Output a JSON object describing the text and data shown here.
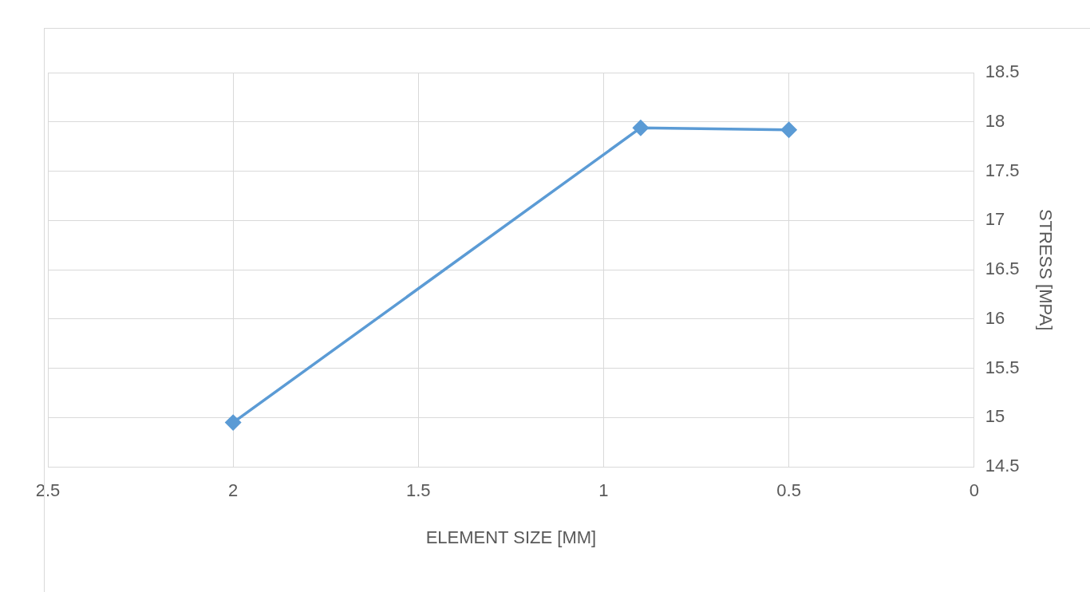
{
  "chart_data": {
    "type": "line",
    "xlabel": "ELEMENT SIZE [MM]",
    "ylabel": "STRESS [MPA]",
    "series": [
      {
        "color": "#5b9bd5",
        "x": [
          2,
          0.9,
          0.5
        ],
        "values": [
          14.95,
          17.94,
          17.92
        ]
      }
    ],
    "xlim": [
      2.5,
      0
    ],
    "xticks": [
      2.5,
      2,
      1.5,
      1,
      0.5,
      0
    ],
    "ylim": [
      14.5,
      18.5
    ],
    "yticks": [
      14.5,
      15,
      15.5,
      16,
      16.5,
      17,
      17.5,
      18,
      18.5
    ],
    "grid": true,
    "legend": false,
    "marker": "diamond",
    "line_style": "solid"
  }
}
